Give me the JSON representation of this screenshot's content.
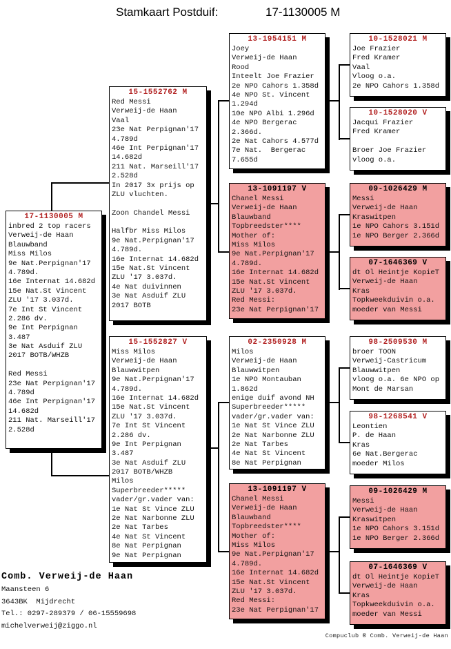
{
  "title": {
    "label": "Stamkaart Postduif:",
    "ring": "17-1130005 M"
  },
  "colors": {
    "pink": "#f2a0a0",
    "title_red": "#b22222",
    "line": "#000000"
  },
  "boxes": [
    {
      "ring": "17-1130005 M",
      "pink": false,
      "lines": [
        "inbred 2 top racers",
        "Verweij-de Haan",
        "Blauwband",
        "Miss Milos",
        "9e Nat.Perpignan'17",
        "4.789d.",
        "16e Internat 14.682d",
        "15e Nat.St Vincent",
        "ZLU '17 3.037d.",
        "7e Int St Vincent",
        "2.286 dv.",
        "9e Int Perpignan",
        "3.487",
        "3e Nat Asduif ZLU",
        "2017 BOTB/WHZB",
        "",
        "Red Messi",
        "23e Nat Perpignan'17",
        "4.789d",
        "46e Int Perpignan'17",
        "14.682d",
        "211 Nat. Marseill'17",
        "2.528d"
      ]
    },
    {
      "ring": "15-1552762 M",
      "pink": false,
      "lines": [
        "Red Messi",
        "Verweij-de Haan",
        "Vaal",
        "23e Nat Perpignan'17",
        "4.789d",
        "46e Int Perpignan'17",
        "14.682d",
        "211 Nat. Marseill'17",
        "2.528d",
        "In 2017 3x prijs op",
        "ZLU vluchten.",
        "",
        "Zoon Chandel Messi",
        "",
        "Halfbr Miss Milos",
        "9e Nat.Perpignan'17",
        "4.789d.",
        "16e Internat 14.682d",
        "15e Nat.St Vincent",
        "ZLU '17 3.037d.",
        "4e Nat duivinnen",
        "3e Nat Asduif ZLU",
        "2017 BOTB"
      ]
    },
    {
      "ring": "15-1552827 V",
      "pink": false,
      "lines": [
        "Miss Milos",
        "Verweij-de Haan",
        "Blauwwitpen",
        "9e Nat.Perpignan'17",
        "4.789d.",
        "16e Internat 14.682d",
        "15e Nat.St Vincent",
        "ZLU '17 3.037d.",
        "7e Int St Vincent",
        "2.286 dv.",
        "9e Int Perpignan",
        "3.487",
        "3e Nat Asduif ZLU",
        "2017 BOTB/WHZB",
        "Milos",
        "Superbreeder*****",
        "vader/gr.vader van:",
        "1e Nat St Vince ZLU",
        "2e Nat Narbonne ZLU",
        "2e Nat Tarbes",
        "4e Nat St Vincent",
        "8e Nat Perpignan",
        "9e Nat Perpignan"
      ]
    },
    {
      "ring": "13-1954151 M",
      "pink": false,
      "lines": [
        "Joey",
        "Verweij-de Haan",
        "Rood",
        "Inteelt Joe Frazier",
        "2e NPO Cahors 1.358d",
        "4e NPO St. Vincent",
        "1.294d",
        "10e NPO Albi 1.296d",
        "4e NPO Bergerac",
        "2.366d.",
        "2e Nat Cahors 4.577d",
        "7e Nat.  Bergerac",
        "7.655d"
      ]
    },
    {
      "ring": "13-1091197 V",
      "pink": true,
      "lines": [
        "Chanel Messi",
        "Verweij-de Haan",
        "Blauwband",
        "Topbreedster****",
        "Mother of:",
        "Miss Milos",
        "9e Nat.Perpignan'17",
        "4.789d.",
        "16e Internat 14.682d",
        "15e Nat.St Vincent",
        "ZLU '17 3.037d.",
        "Red Messi:",
        "23e Nat Perpignan'17"
      ]
    },
    {
      "ring": "02-2350928 M",
      "pink": false,
      "lines": [
        "Milos",
        "Verweij-de Haan",
        "Blauwwitpen",
        "1e NPO Montauban",
        "1.862d",
        "enige duif avond NH",
        "Superbreeder*****",
        "vader/gr.vader van:",
        "1e Nat St Vince ZLU",
        "2e Nat Narbonne ZLU",
        "2e Nat Tarbes",
        "4e Nat St Vincent",
        "8e Nat Perpignan"
      ]
    },
    {
      "ring": "13-1091197 V",
      "pink": true,
      "lines": [
        "Chanel Messi",
        "Verweij-de Haan",
        "Blauwband",
        "Topbreedster****",
        "Mother of:",
        "Miss Milos",
        "9e Nat.Perpignan'17",
        "4.789d.",
        "16e Internat 14.682d",
        "15e Nat.St Vincent",
        "ZLU '17 3.037d.",
        "Red Messi:",
        "23e Nat Perpignan'17"
      ]
    },
    {
      "ring": "10-1528021 M",
      "pink": false,
      "lines": [
        "Joe Frazier",
        "Fred Kramer",
        "Vaal",
        "Vloog o.a.",
        "2e NPO Cahors 1.358d"
      ]
    },
    {
      "ring": "10-1528020 V",
      "pink": false,
      "lines": [
        "Jacqui Frazier",
        "Fred Kramer",
        "",
        "Broer Joe Frazier",
        "vloog o.a."
      ]
    },
    {
      "ring": "09-1026429 M",
      "pink": true,
      "lines": [
        "Messi",
        "Verweij-de Haan",
        "Kraswitpen",
        "1e NPO Cahors 3.151d",
        "1e NPO Berger 2.366d"
      ]
    },
    {
      "ring": "07-1646369 V",
      "pink": true,
      "lines": [
        "dt Ol Heintje KopieT",
        "Verweij-de Haan",
        "Kras",
        "Topkweekduivin o.a.",
        "moeder van Messi"
      ]
    },
    {
      "ring": "98-2509530 M",
      "pink": false,
      "lines": [
        "broer TOON",
        "Verweij-Castricum",
        "Blauwwitpen",
        "vloog o.a. 6e NPO op",
        "Mont de Marsan"
      ]
    },
    {
      "ring": "98-1268541 V",
      "pink": false,
      "lines": [
        "Leontien",
        "P. de Haan",
        "Kras",
        "6e Nat.Bergerac",
        "moeder Milos"
      ]
    },
    {
      "ring": "09-1026429 M",
      "pink": true,
      "lines": [
        "Messi",
        "Verweij-de Haan",
        "Kraswitpen",
        "1e NPO Cahors 3.151d",
        "1e NPO Berger 2.366d"
      ]
    },
    {
      "ring": "07-1646369 V",
      "pink": true,
      "lines": [
        "dt Ol Heintje KopieT",
        "Verweij-de Haan",
        "Kras",
        "Topkweekduivin o.a.",
        "moeder van Messi"
      ]
    }
  ],
  "owner": {
    "name": "Comb. Verweij-de Haan",
    "address_lines": [
      "Maansteen 6",
      "3643BK  Mijdrecht",
      "Tel.: 0297-289379 / 06-15559698",
      "michelverweij@ziggo.nl"
    ]
  },
  "footer_credit": "Compuclub ® Comb. Verweij-de Haan"
}
